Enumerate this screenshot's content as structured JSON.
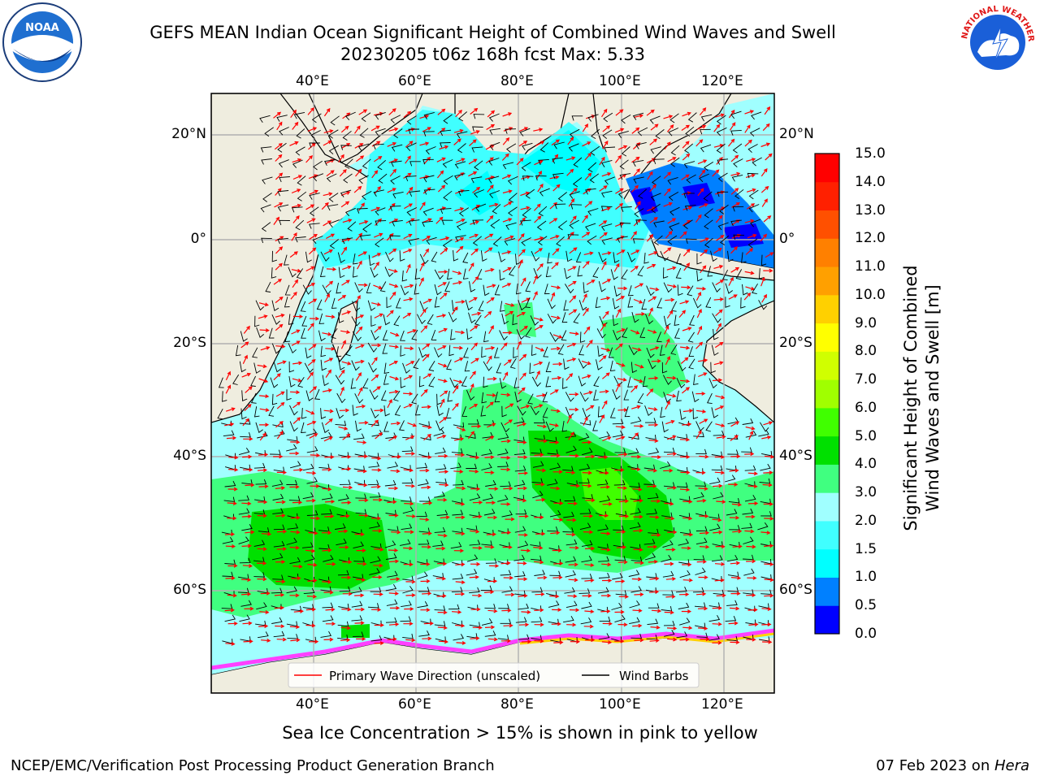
{
  "header": {
    "title_line1": "GEFS MEAN Indian Ocean Significant Height of Combined Wind Waves and Swell",
    "title_line2": "20230205 t06z 168h fcst   Max: 5.33"
  },
  "logos": {
    "left": "NOAA",
    "right_ring_text": "NATIONAL WEATHER SERVICE"
  },
  "map": {
    "lon_ticks": [
      "40°E",
      "60°E",
      "80°E",
      "100°E",
      "120°E"
    ],
    "lat_ticks": [
      "20°N",
      "0°",
      "20°S",
      "40°S",
      "60°S"
    ],
    "grid": true,
    "land_color": "#efeddf",
    "legend": {
      "placement": "bottom-center",
      "items": [
        {
          "label": "Primary Wave Direction (unscaled)",
          "color": "#ff0000"
        },
        {
          "label": "Wind Barbs",
          "color": "#000000"
        }
      ]
    }
  },
  "colorbar": {
    "label_line1": "Significant Height of Combined",
    "label_line2": "Wind Waves and Swell [m]",
    "ticks": [
      "15.0",
      "14.0",
      "13.0",
      "12.0",
      "11.0",
      "10.0",
      "9.0",
      "8.0",
      "7.0",
      "6.0",
      "5.0",
      "4.0",
      "3.0",
      "2.0",
      "1.5",
      "1.0",
      "0.5",
      "0.0"
    ],
    "colors_bottom_to_top": [
      "#0000ff",
      "#0080ff",
      "#00ffff",
      "#40ffff",
      "#a0ffff",
      "#40ff80",
      "#00e000",
      "#40ff00",
      "#a0ff00",
      "#d0ff00",
      "#ffff00",
      "#ffd000",
      "#ffa000",
      "#ff8000",
      "#ff5000",
      "#ff2000",
      "#ff0000"
    ]
  },
  "caption": "Sea Ice Concentration > 15% is shown in pink to yellow",
  "footer": {
    "left": "NCEP/EMC/Verification Post Processing Product Generation Branch",
    "right_date": "07 Feb 2023 on ",
    "right_host": "Hera"
  }
}
